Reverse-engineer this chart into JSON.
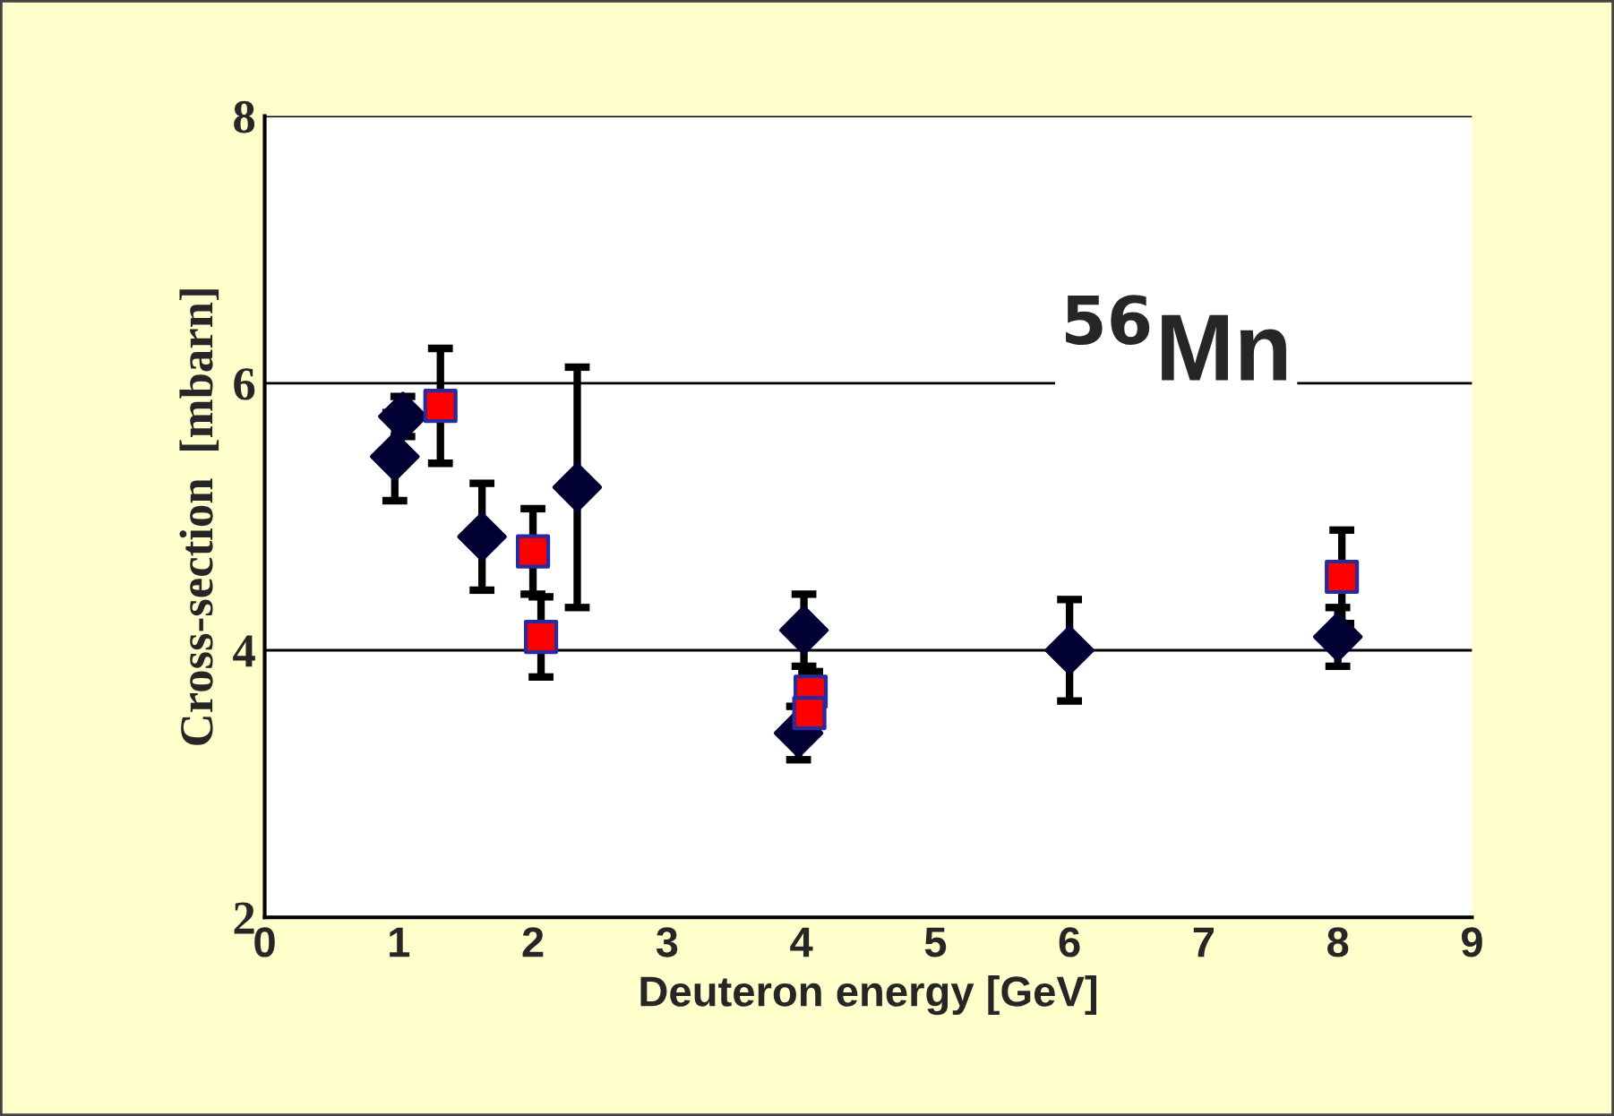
{
  "chart_data": {
    "type": "scatter",
    "xlabel": "Deuteron energy [GeV]",
    "ylabel": "Cross-section  [mbarn]",
    "annotations": [
      "$^{56}$Mn"
    ],
    "xlim": [
      0,
      9
    ],
    "xticks": [
      0,
      1,
      2,
      3,
      4,
      5,
      6,
      7,
      8,
      9
    ],
    "ylim": [
      2,
      8
    ],
    "yticks": [
      2,
      4,
      6,
      8
    ],
    "grid": "y",
    "series": [
      {
        "color": "#000033",
        "marker": "diamond",
        "x": [
          0.97,
          1.03,
          1.62,
          2.33,
          4.02,
          3.98,
          6.0,
          8.0
        ],
        "values": [
          5.45,
          5.75,
          4.85,
          5.22,
          4.15,
          3.38,
          4.0,
          4.1
        ],
        "errors": [
          0.33,
          0.15,
          0.4,
          0.9,
          0.27,
          0.2,
          0.38,
          0.22
        ]
      },
      {
        "color": "#ff0000",
        "marker": "square",
        "x": [
          1.31,
          2.0,
          2.06,
          4.07,
          4.06,
          8.03
        ],
        "values": [
          5.83,
          4.74,
          4.1,
          3.69,
          3.53,
          4.55
        ],
        "errors": [
          0.43,
          0.32,
          0.3,
          0.15,
          null,
          0.35
        ]
      }
    ]
  }
}
